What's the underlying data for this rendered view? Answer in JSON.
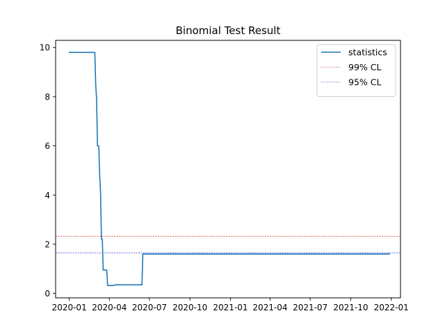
{
  "chart_data": {
    "type": "line",
    "title": "Binomial Test Result",
    "xlabel": "",
    "ylabel": "",
    "x_axis": {
      "type": "date",
      "range": [
        "2019-12-01",
        "2022-01-22"
      ],
      "ticks": [
        {
          "date": "2020-01-01",
          "label": "2020-01"
        },
        {
          "date": "2020-04-01",
          "label": "2020-04"
        },
        {
          "date": "2020-07-01",
          "label": "2020-07"
        },
        {
          "date": "2020-10-01",
          "label": "2020-10"
        },
        {
          "date": "2021-01-01",
          "label": "2021-01"
        },
        {
          "date": "2021-04-01",
          "label": "2021-04"
        },
        {
          "date": "2021-07-01",
          "label": "2021-07"
        },
        {
          "date": "2021-10-01",
          "label": "2021-10"
        },
        {
          "date": "2022-01-01",
          "label": "2022-01"
        }
      ]
    },
    "y_axis": {
      "range": [
        -0.18,
        10.29
      ],
      "ticks": [
        0,
        2,
        4,
        6,
        8,
        10
      ]
    },
    "grid": false,
    "legend": {
      "placement": "top-right",
      "entries": [
        "statistics",
        "99% CL",
        "95% CL"
      ]
    },
    "series": [
      {
        "name": "statistics",
        "color": "#1f77b4",
        "style": "solid",
        "points": [
          {
            "x": "2020-01-01",
            "y": 9.8
          },
          {
            "x": "2020-02-28",
            "y": 9.8
          },
          {
            "x": "2020-03-01",
            "y": 8.5
          },
          {
            "x": "2020-03-03",
            "y": 7.9
          },
          {
            "x": "2020-03-05",
            "y": 6.0
          },
          {
            "x": "2020-03-08",
            "y": 6.0
          },
          {
            "x": "2020-03-09",
            "y": 5.4
          },
          {
            "x": "2020-03-10",
            "y": 4.8
          },
          {
            "x": "2020-03-12",
            "y": 4.1
          },
          {
            "x": "2020-03-14",
            "y": 2.2
          },
          {
            "x": "2020-03-16",
            "y": 2.2
          },
          {
            "x": "2020-03-17",
            "y": 1.6
          },
          {
            "x": "2020-03-18",
            "y": 0.95
          },
          {
            "x": "2020-03-26",
            "y": 0.95
          },
          {
            "x": "2020-03-28",
            "y": 0.32
          },
          {
            "x": "2020-04-12",
            "y": 0.32
          },
          {
            "x": "2020-04-14",
            "y": 0.35
          },
          {
            "x": "2020-06-14",
            "y": 0.35
          },
          {
            "x": "2020-06-16",
            "y": 1.6
          },
          {
            "x": "2021-12-28",
            "y": 1.6
          }
        ]
      },
      {
        "name": "99% CL",
        "color": "#cc1111",
        "style": "dashed",
        "value": 2.33
      },
      {
        "name": "95% CL",
        "color": "#1111cc",
        "style": "dashed",
        "value": 1.65
      }
    ]
  }
}
